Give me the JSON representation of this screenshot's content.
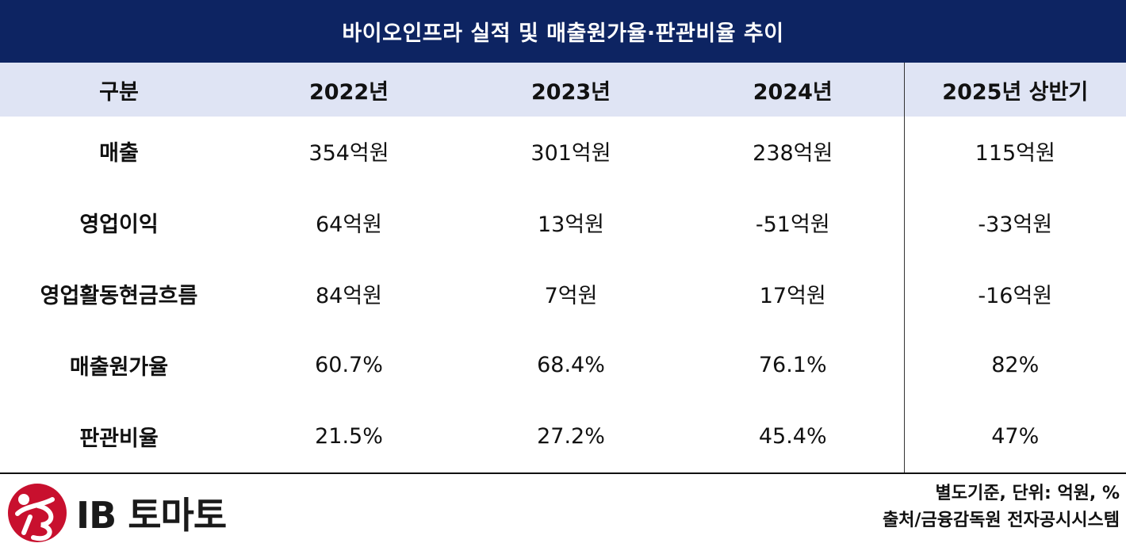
{
  "title": "바이오인프라 실적 및 매출원가율·판관비율 추이",
  "table": {
    "headers": [
      "구분",
      "2022년",
      "2023년",
      "2024년",
      "2025년 상반기"
    ],
    "rows": [
      {
        "label": "매출",
        "values": [
          "354억원",
          "301억원",
          "238억원",
          "115억원"
        ]
      },
      {
        "label": "영업이익",
        "values": [
          "64억원",
          "13억원",
          "-51억원",
          "-33억원"
        ]
      },
      {
        "label": "영업활동현금흐름",
        "values": [
          "84억원",
          "7억원",
          "17억원",
          "-16억원"
        ]
      },
      {
        "label": "매출원가율",
        "values": [
          "60.7%",
          "68.4%",
          "76.1%",
          "82%"
        ]
      },
      {
        "label": "판관비율",
        "values": [
          "21.5%",
          "27.2%",
          "45.4%",
          "47%"
        ]
      }
    ]
  },
  "logo": {
    "text": "IB 토마토",
    "color": "#c8102e"
  },
  "footnotes": {
    "basis": "별도기준, 단위: 억원, %",
    "source": "출처/금융감독원 전자공시시스템"
  },
  "colors": {
    "title_bg": "#0d2462",
    "header_bg": "#dfe4f4"
  }
}
